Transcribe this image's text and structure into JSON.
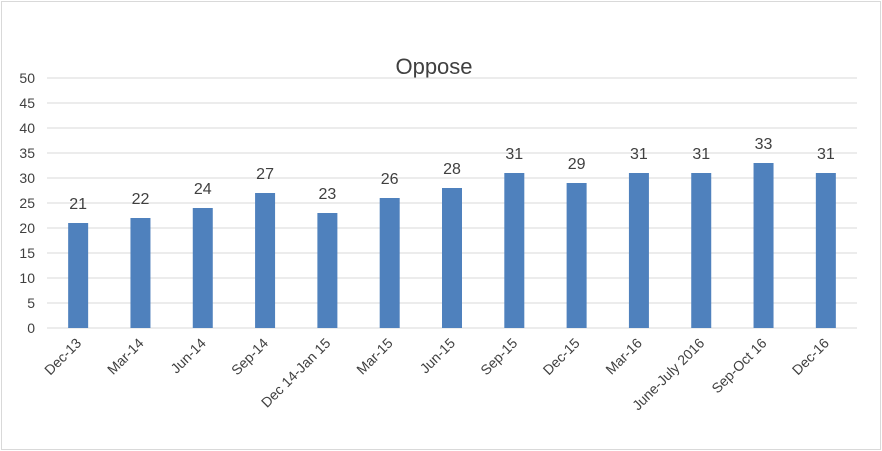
{
  "chart_data": {
    "type": "bar",
    "title": "Oppose",
    "xlabel": "",
    "ylabel": "",
    "ylim": [
      0,
      50
    ],
    "yticks": [
      0,
      5,
      10,
      15,
      20,
      25,
      30,
      35,
      40,
      45,
      50
    ],
    "grid": true,
    "legend": "none",
    "bar_color": "#4f81bd",
    "categories": [
      "Dec-13",
      "Mar-14",
      "Jun-14",
      "Sep-14",
      "Dec 14-Jan 15",
      "Mar-15",
      "Jun-15",
      "Sep-15",
      "Dec-15",
      "Mar-16",
      "June-July 2016",
      "Sep-Oct 16",
      "Dec-16"
    ],
    "values": [
      21,
      22,
      24,
      27,
      23,
      26,
      28,
      31,
      29,
      31,
      31,
      33,
      31
    ]
  }
}
